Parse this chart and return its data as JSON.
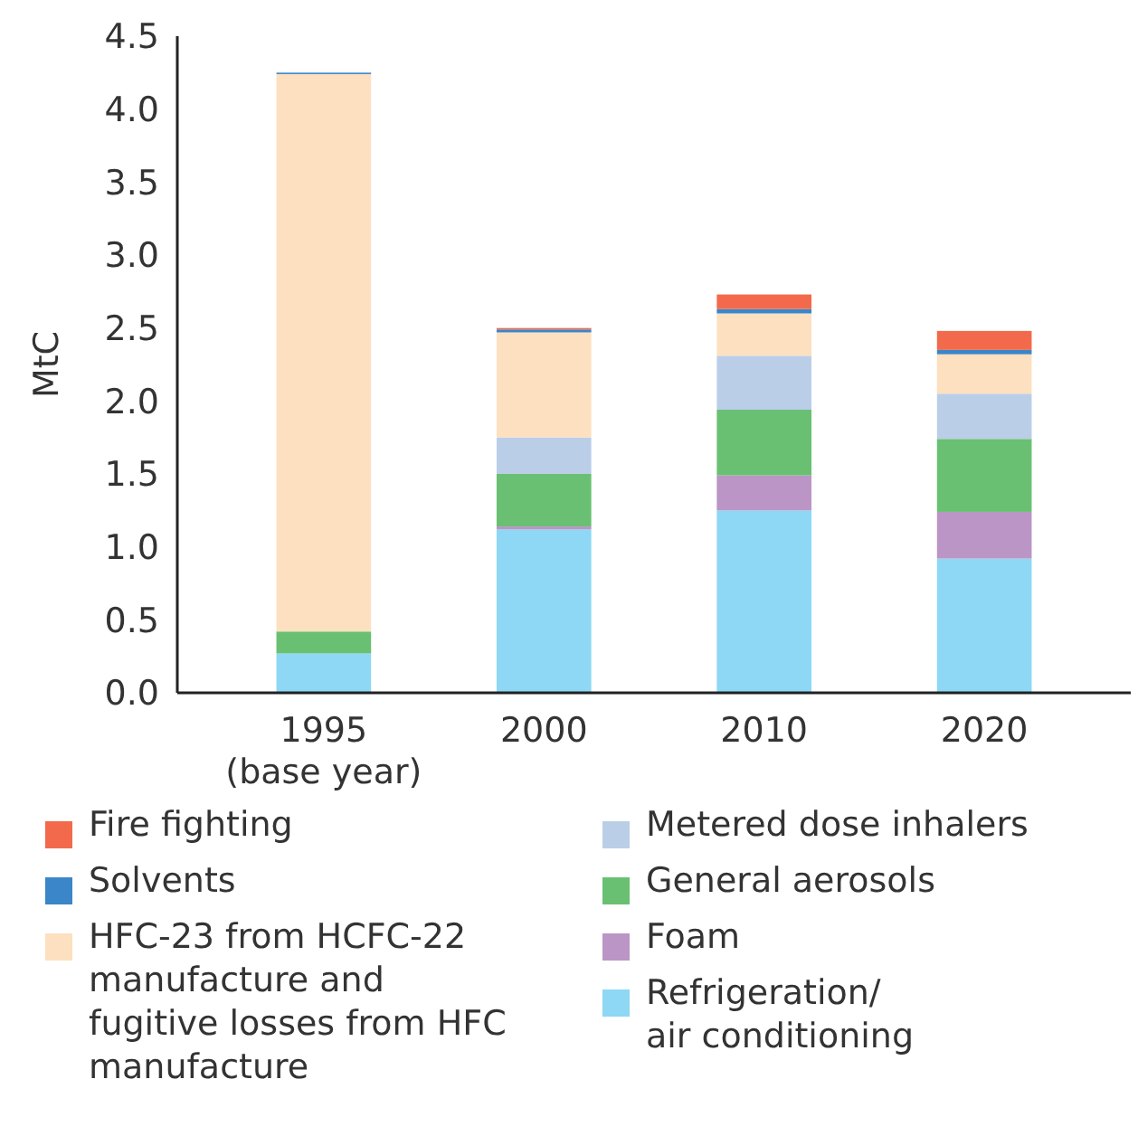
{
  "chart_data": {
    "type": "bar",
    "stacked": true,
    "ylabel": "MtC",
    "categories": [
      "1995\n(base year)",
      "2000",
      "2010",
      "2020"
    ],
    "ylim": [
      0,
      4.5
    ],
    "yticks": [
      {
        "value": 0,
        "label": "0.0"
      },
      0.5,
      {
        "value": 1,
        "label": "1.0"
      },
      1.5,
      {
        "value": 2,
        "label": "2.0"
      },
      2.5,
      {
        "value": 3,
        "label": "3.0"
      },
      3.5,
      {
        "value": 4,
        "label": "4.0"
      },
      4.5
    ],
    "legend": "bottom",
    "grid": false,
    "series": [
      {
        "name": "Refrigeration/\nair conditioning",
        "color": "#8ed7f5",
        "values": [
          0.27,
          1.12,
          1.25,
          0.92
        ]
      },
      {
        "name": "Foam",
        "color": "#bb95c5",
        "values": [
          0,
          0.02,
          0.24,
          0.32
        ]
      },
      {
        "name": "General aerosols",
        "color": "#69c072",
        "values": [
          0.15,
          0.36,
          0.45,
          0.5
        ]
      },
      {
        "name": "Metered dose inhalers",
        "color": "#bacee8",
        "values": [
          0,
          0.25,
          0.37,
          0.31
        ]
      },
      {
        "name": "HFC-23 from HCFC-22\nmanufacture and\nfugitive losses from HFC\nmanufacture",
        "color": "#fde0c0",
        "values": [
          3.82,
          0.72,
          0.29,
          0.27
        ]
      },
      {
        "name": "Solvents",
        "color": "#3a86c8",
        "values": [
          0.01,
          0.02,
          0.03,
          0.03
        ]
      },
      {
        "name": "Fire fighting",
        "color": "#f26a4b",
        "values": [
          0,
          0.01,
          0.1,
          0.13
        ]
      }
    ]
  }
}
